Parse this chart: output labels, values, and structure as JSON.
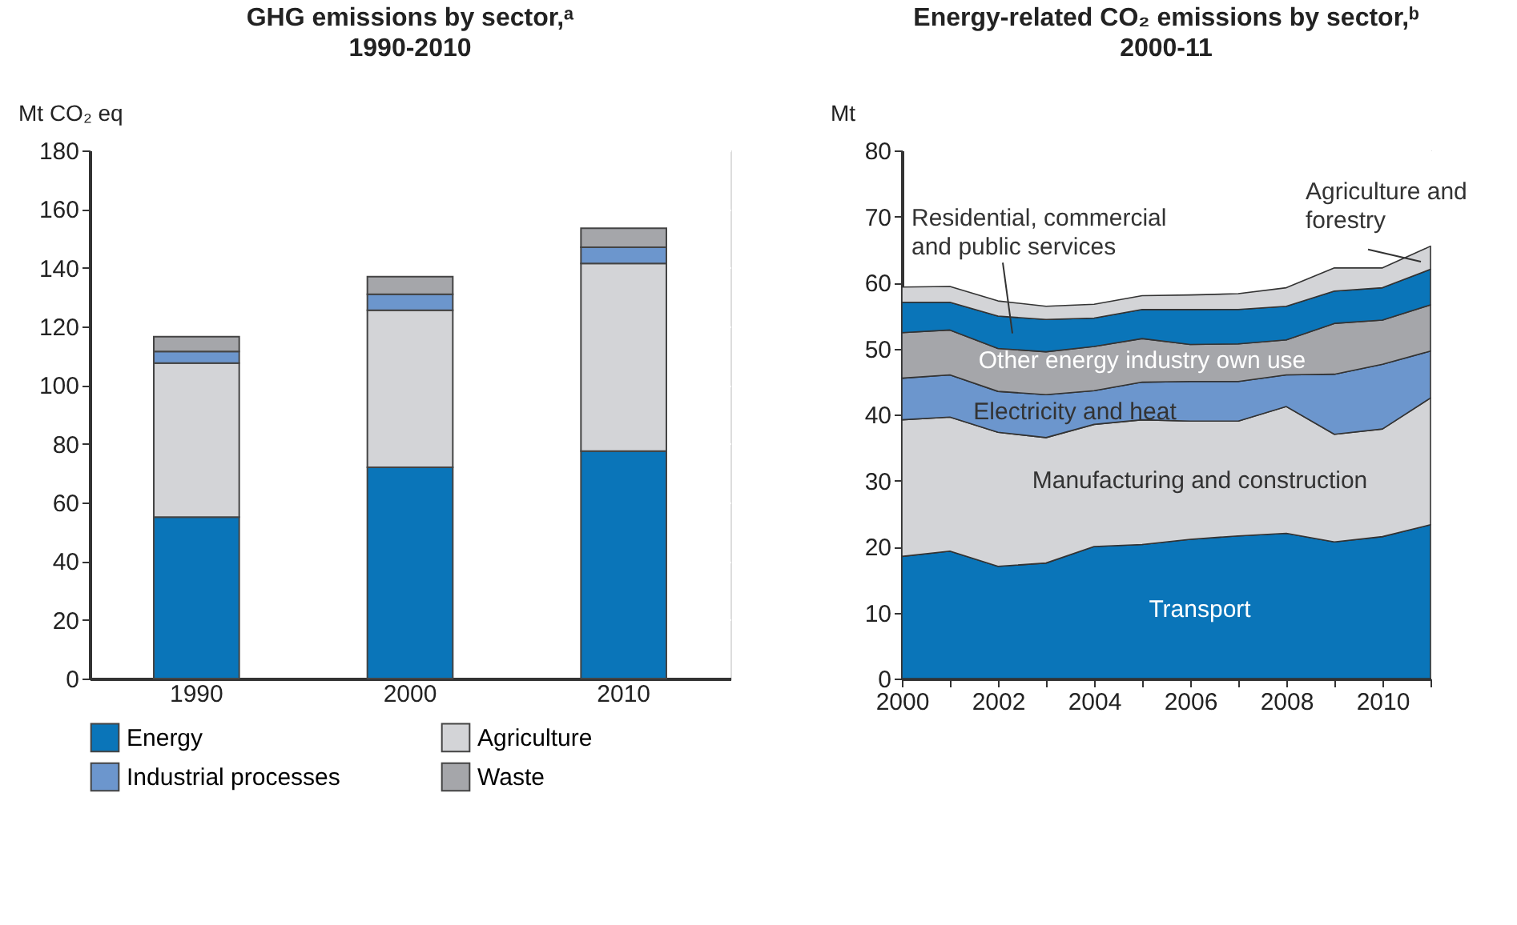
{
  "chart_data": [
    {
      "type": "bar",
      "stacked": true,
      "title": "GHG emissions by sector,ᵃ",
      "subtitle": "1990-2010",
      "ylabel": "Mt CO₂ eq",
      "categories": [
        "1990",
        "2000",
        "2010"
      ],
      "ylim": [
        0,
        180
      ],
      "yticks": [
        0,
        20,
        40,
        60,
        80,
        100,
        120,
        140,
        160,
        180
      ],
      "grid": "y",
      "legend": "bottom",
      "series": [
        {
          "name": "Energy",
          "color": "#0a75b9",
          "values": [
            55,
            72,
            77.5
          ]
        },
        {
          "name": "Agriculture",
          "color": "#d3d4d7",
          "values": [
            52.5,
            53.5,
            64
          ]
        },
        {
          "name": "Industrial processes",
          "color": "#6c96cd",
          "values": [
            4,
            5.5,
            5.5
          ]
        },
        {
          "name": "Waste",
          "color": "#a5a6aa",
          "values": [
            5,
            6,
            6.5
          ]
        }
      ]
    },
    {
      "type": "area",
      "stacked": true,
      "title": "Energy-related CO₂ emissions by sector,ᵇ",
      "subtitle": "2000-11",
      "ylabel": "Mt",
      "x": [
        2000,
        2001,
        2002,
        2003,
        2004,
        2005,
        2006,
        2007,
        2008,
        2009,
        2010,
        2011
      ],
      "xlim": [
        2000,
        2011
      ],
      "xticks": [
        2000,
        {
          "value": 2001,
          "label": null
        },
        2002,
        {
          "value": 2003,
          "label": null
        },
        2004,
        {
          "value": 2005,
          "label": null
        },
        2006,
        {
          "value": 2007,
          "label": null
        },
        2008,
        {
          "value": 2009,
          "label": null
        },
        2010,
        {
          "value": 2011,
          "label": null
        }
      ],
      "ylim": [
        0,
        80
      ],
      "yticks": [
        0,
        10,
        20,
        30,
        40,
        50,
        60,
        70,
        80
      ],
      "grid": true,
      "series": [
        {
          "name": "Transport",
          "color": "#0a75b9",
          "values": [
            18.5,
            19.3,
            17,
            17.5,
            20,
            20.3,
            21.1,
            21.6,
            22,
            20.7,
            21.5,
            23.3
          ]
        },
        {
          "name": "Manufacturing and construction",
          "color": "#d3d4d7",
          "values": [
            20.7,
            20.3,
            20.3,
            19,
            18.5,
            18.9,
            17.9,
            17.4,
            19.2,
            16.3,
            16.3,
            19.2
          ]
        },
        {
          "name": "Electricity and heat",
          "color": "#6c96cd",
          "values": [
            6.3,
            6.4,
            6.2,
            6.5,
            5.1,
            5.7,
            6,
            6,
            4.8,
            9.1,
            9.8,
            7.1
          ]
        },
        {
          "name": "Other energy industry own use",
          "color": "#a5a6aa",
          "values": [
            6.9,
            6.8,
            6.5,
            6.5,
            6.7,
            6.6,
            5.6,
            5.7,
            5.3,
            7.7,
            6.7,
            7
          ]
        },
        {
          "name": "Residential, commercial and public services",
          "color": "#0a75b9",
          "values": [
            4.6,
            4.2,
            4.9,
            4.9,
            4.3,
            4.4,
            5.3,
            5.2,
            5.1,
            4.9,
            4.9,
            5.4
          ]
        },
        {
          "name": "Agriculture and forestry",
          "color": "#d3d4d7",
          "values": [
            2.3,
            2.4,
            2.3,
            2,
            2.1,
            2.1,
            2.2,
            2.4,
            2.8,
            3.5,
            3,
            3.5
          ]
        }
      ]
    }
  ]
}
